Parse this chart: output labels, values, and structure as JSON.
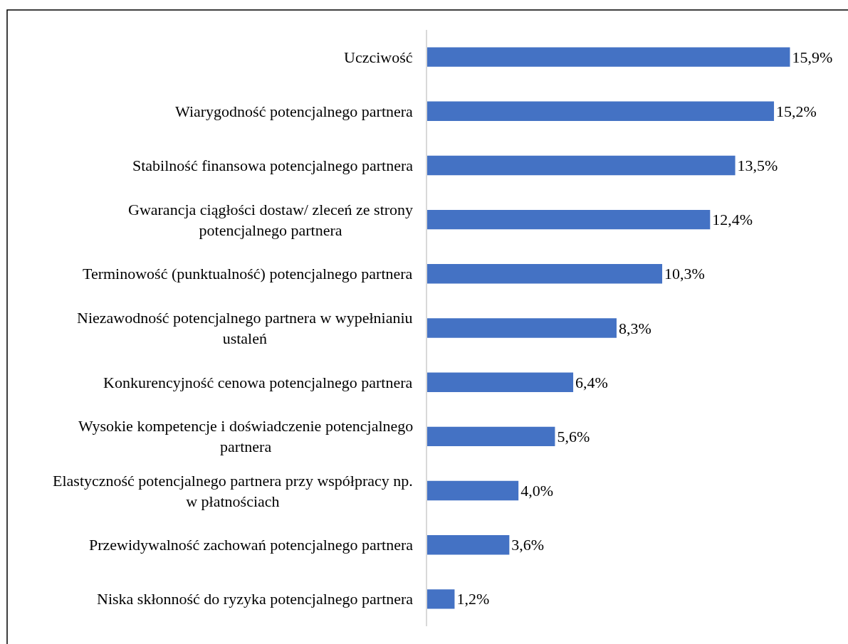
{
  "chart_data": {
    "type": "bar",
    "orientation": "horizontal",
    "categories": [
      "Uczciwość",
      "Wiarygodność potencjalnego partnera",
      "Stabilność finansowa potencjalnego partnera",
      "Gwarancja ciągłości dostaw/ zleceń ze strony potencjalnego partnera",
      "Terminowość (punktualność) potencjalnego partnera",
      "Niezawodność potencjalnego partnera w wypełnianiu ustaleń",
      "Konkurencyjność cenowa potencjalnego partnera",
      "Wysokie kompetencje i doświadczenie potencjalnego partnera",
      "Elastyczność potencjalnego partnera przy współpracy np. w płatnościach",
      "Przewidywalność zachowań potencjalnego partnera",
      "Niska skłonność do ryzyka potencjalnego partnera"
    ],
    "values": [
      15.9,
      15.2,
      13.5,
      12.4,
      10.3,
      8.3,
      6.4,
      5.6,
      4.0,
      3.6,
      1.2
    ],
    "color": "#4472c4",
    "value_labels": [
      "15,9%",
      "15,2%",
      "13,5%",
      "12,4%",
      "10,3%",
      "8,3%",
      "6,4%",
      "5,6%",
      "4,0%",
      "3,6%",
      "1,2%"
    ],
    "tick_labels": "y"
  }
}
